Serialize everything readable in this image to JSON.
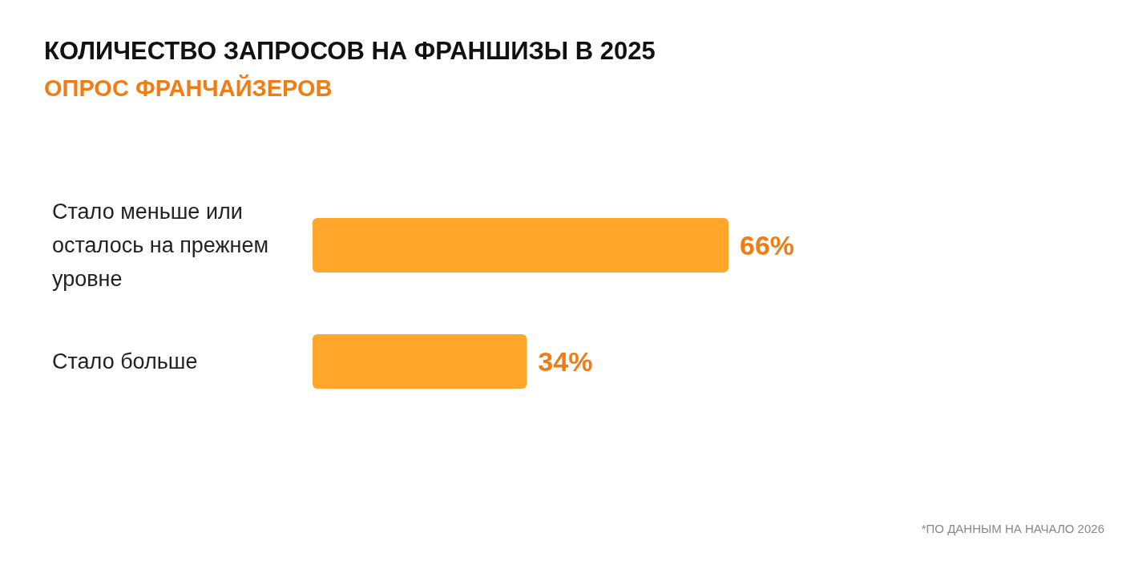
{
  "chart_data": {
    "type": "bar",
    "orientation": "horizontal",
    "title": "КОЛИЧЕСТВО ЗАПРОСОВ НА ФРАНШИЗЫ В 2025",
    "subtitle": "ОПРОС ФРАНЧАЙЗЕРОВ",
    "categories": [
      "Стало меньше или осталось на прежнем уровне",
      "Стало больше"
    ],
    "series": [
      {
        "color": "#ffa62b",
        "values": [
          66,
          34
        ],
        "value_labels": [
          "66%",
          "34%"
        ]
      }
    ],
    "annotations": [
      "*ПО ДАННЫМ НА НАЧАЛО 2026"
    ]
  }
}
